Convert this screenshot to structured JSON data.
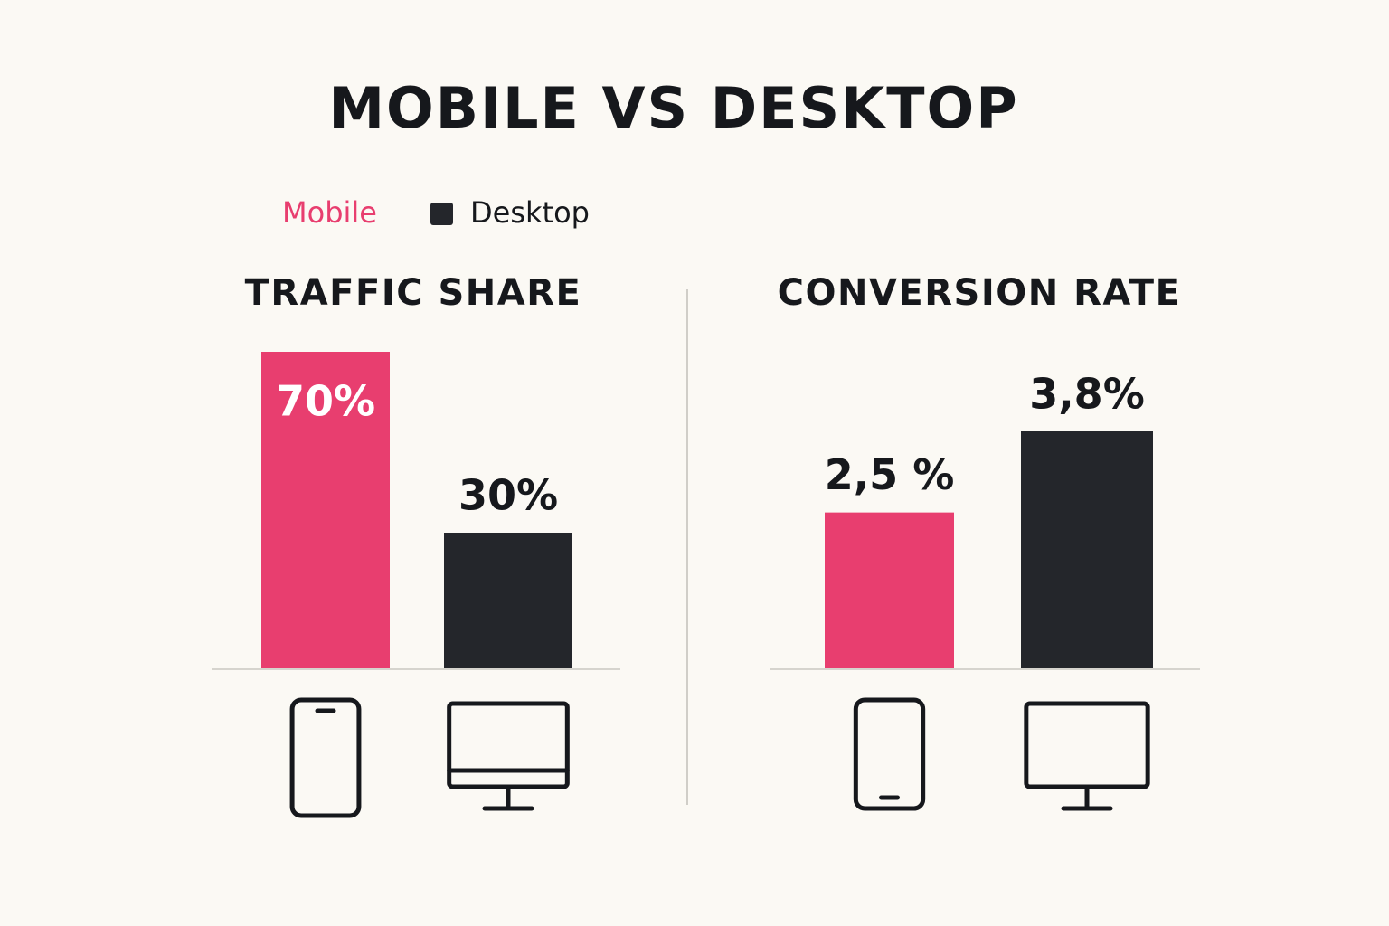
{
  "title": "MOBILE VS DESKTOP",
  "legend": [
    {
      "name": "Mobile",
      "color": "#e83e6f"
    },
    {
      "name": "Desktop",
      "color": "#24262b"
    }
  ],
  "chart_data": [
    {
      "type": "bar",
      "title": "TRAFFIC SHARE",
      "values": [
        70,
        30
      ],
      "value_labels": [
        "70%",
        "30%"
      ]
    },
    {
      "type": "bar",
      "title": "CONVERSION RATE",
      "values": [
        2.5,
        3.8
      ],
      "value_labels": [
        "2,5 %",
        "3,8%"
      ]
    }
  ]
}
